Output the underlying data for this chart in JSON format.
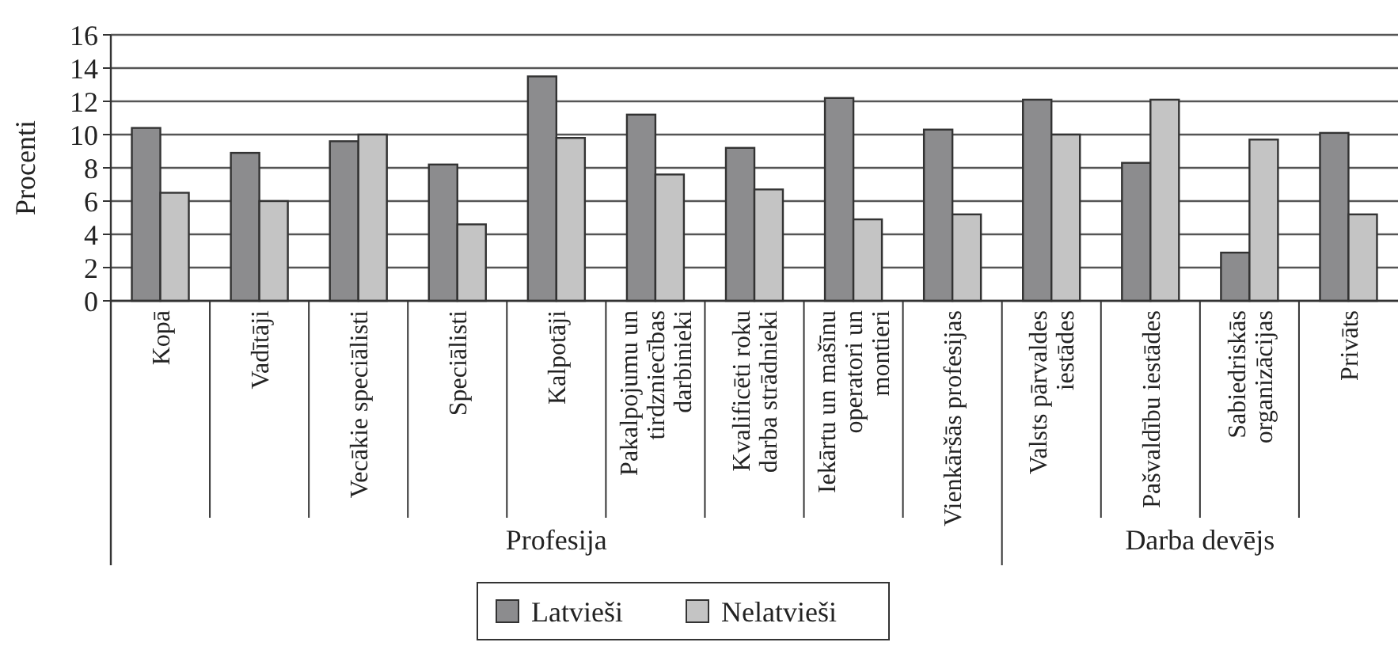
{
  "chart_data": {
    "type": "bar",
    "ylabel": "Procenti",
    "categories": [
      "Kopā",
      "Vadītāji",
      "Vecākie speciālisti",
      "Speciālisti",
      "Kalpotāji",
      "Pakalpojumu un tirdzniecības darbinieki",
      "Kvalificēti roku darba strādnieki",
      "Iekārtu un mašīnu operatori un montieri",
      "Vienkāršās profesijas",
      "Valsts pārvaldes iestādes",
      "Pašvaldību iestādes",
      "Sabiedriskās organizācijas",
      "Privāts"
    ],
    "series": [
      {
        "name": "Latvieši",
        "color": "#8c8c8e",
        "values": [
          10.4,
          8.9,
          9.6,
          8.2,
          13.5,
          11.2,
          9.2,
          12.2,
          10.3,
          12.1,
          8.3,
          2.9,
          10.1
        ]
      },
      {
        "name": "Nelatvieši",
        "color": "#c4c4c4",
        "values": [
          6.5,
          6.0,
          10.0,
          4.6,
          9.8,
          7.6,
          6.7,
          4.9,
          5.2,
          10.0,
          12.1,
          9.7,
          5.2
        ]
      }
    ],
    "annotations": [
      "Profesija",
      "Darba devējs"
    ],
    "ylim": [
      0,
      16
    ],
    "yticks": [
      0,
      2,
      4,
      6,
      8,
      10,
      12,
      14,
      16
    ],
    "grid": "y",
    "legend": "bottom"
  }
}
